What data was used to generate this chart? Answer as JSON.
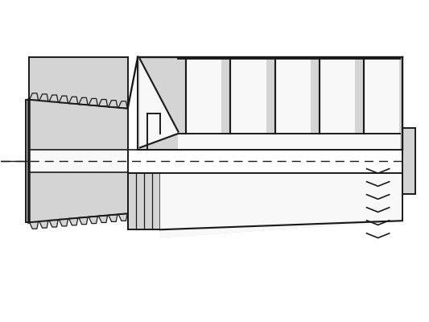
{
  "bg_color": "#ffffff",
  "line_color": "#1a1a1a",
  "fill_light": "#d4d4d4",
  "fill_mid": "#c0c0c0",
  "fill_white": "#f8f8f8",
  "figsize": [
    5.33,
    4.0
  ],
  "dpi": 100
}
